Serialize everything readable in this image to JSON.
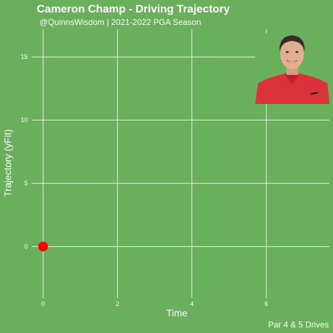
{
  "colors": {
    "background": "#6aaf5b",
    "grid": "#ffffff",
    "text": "#ffffff",
    "point": "#ff0000",
    "shirt": "#d9323a",
    "skin": "#e2ae92",
    "hair": "#3a2a22"
  },
  "chart_data": {
    "type": "scatter",
    "title": "Cameron Champ - Driving Trajectory",
    "subtitle": "@QuinnsWisdom | 2021-2022 PGA Season",
    "xlabel": "Time",
    "ylabel": "Trajectory (yFit)",
    "caption": "Par 4 & 5 Drives",
    "xlim": [
      -0.3,
      7.7
    ],
    "ylim": [
      -4.1,
      17.2
    ],
    "x_ticks": [
      0,
      2,
      4,
      6
    ],
    "y_ticks": [
      0,
      5,
      10,
      15
    ],
    "x_tick_labels": [
      "0",
      "2",
      "4",
      "6"
    ],
    "y_tick_labels": [
      "0",
      "5",
      "10",
      "15"
    ],
    "grid": true,
    "legend": "none",
    "points": [
      {
        "x": 0,
        "y": 0
      }
    ],
    "player_photo": "player-headshot"
  }
}
